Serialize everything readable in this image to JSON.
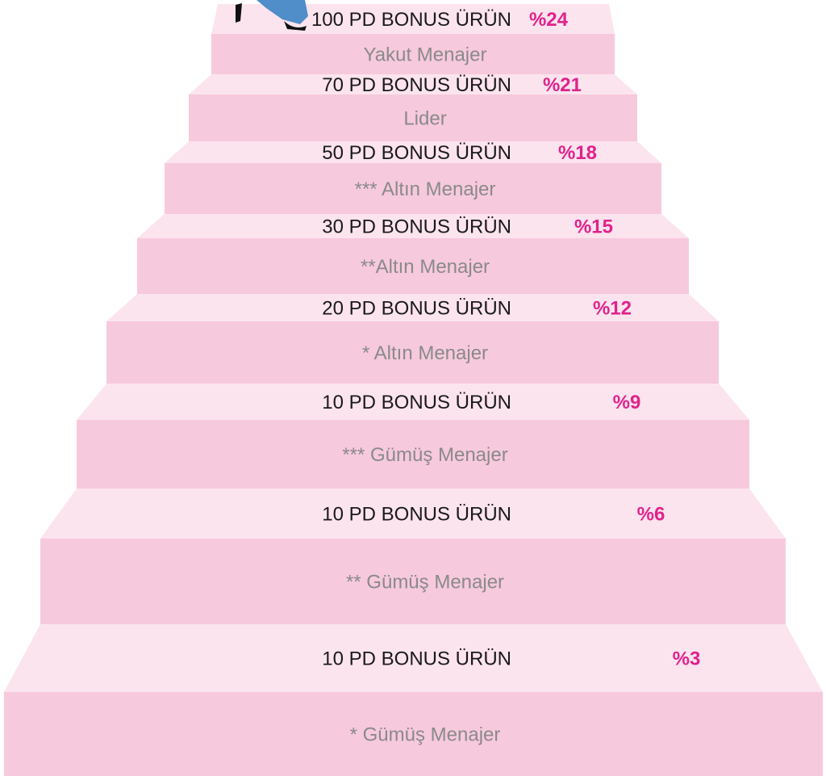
{
  "steps": [
    {
      "bonus": "100 PD BONUS ÜRÜN",
      "percent": "%24",
      "rank": "Yakut Menajer"
    },
    {
      "bonus": "70 PD BONUS ÜRÜN",
      "percent": "%21",
      "rank": "Lider"
    },
    {
      "bonus": "50 PD BONUS ÜRÜN",
      "percent": "%18",
      "rank": "*** Altın Menajer"
    },
    {
      "bonus": "30 PD BONUS ÜRÜN",
      "percent": "%15",
      "rank": "**Altın Menajer"
    },
    {
      "bonus": "20 PD BONUS ÜRÜN",
      "percent": "%12",
      "rank": "* Altın Menajer"
    },
    {
      "bonus": "10 PD BONUS ÜRÜN",
      "percent": "%9",
      "rank": "*** Gümüş Menajer"
    },
    {
      "bonus": "10 PD BONUS ÜRÜN",
      "percent": "%6",
      "rank": "** Gümüş Menajer"
    },
    {
      "bonus": "10 PD BONUS ÜRÜN",
      "percent": "%3",
      "rank": "* Gümüş Menajer"
    }
  ]
}
